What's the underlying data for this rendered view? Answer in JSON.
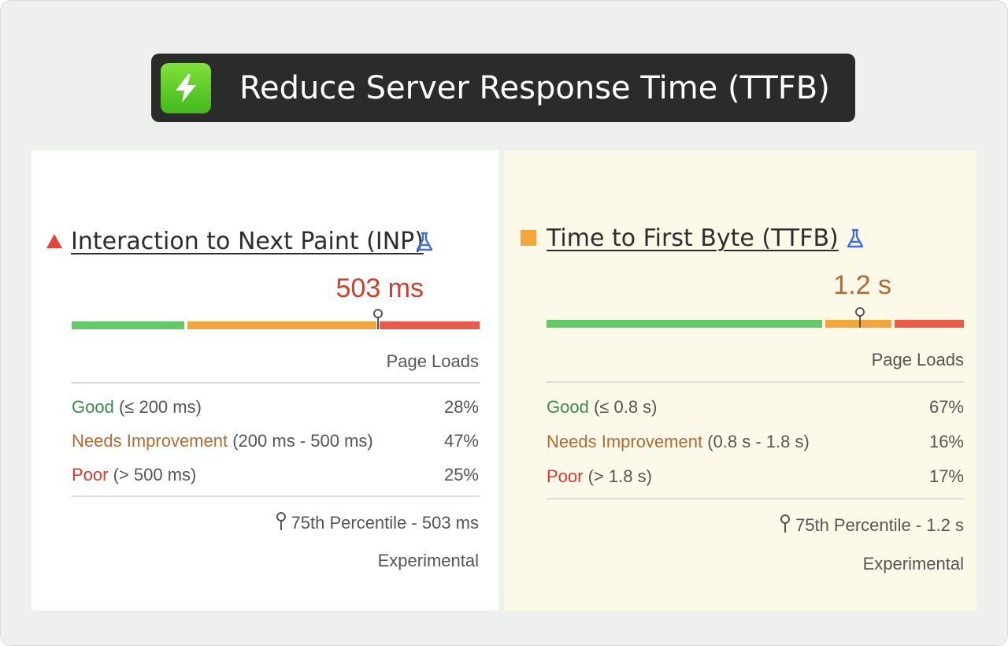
{
  "banner": {
    "icon": "lightning-bolt-icon",
    "title": "Reduce Server Response Time (TTFB)",
    "icon_color": "#5bcc26"
  },
  "inp": {
    "status_icon": "red-triangle-icon",
    "title": "Interaction to Next Paint (INP)",
    "flask_icon": "flask-icon",
    "value": "503 ms",
    "value_color": "#d43b2f",
    "distribution_shares": {
      "good": 0.28,
      "needs_improvement": 0.47,
      "poor": 0.25
    },
    "marker_fraction": 0.75,
    "column_header": "Page Loads",
    "rows": [
      {
        "label": "Good",
        "range": "(≤ 200 ms)",
        "value": "28%"
      },
      {
        "label": "Needs Improvement",
        "range": "(200 ms - 500 ms)",
        "value": "47%"
      },
      {
        "label": "Poor",
        "range": "(> 500 ms)",
        "value": "25%"
      }
    ],
    "percentile": "75th Percentile - 503 ms",
    "experimental": "Experimental"
  },
  "ttfb": {
    "status_icon": "orange-square-icon",
    "title": "Time to First Byte (TTFB)",
    "flask_icon": "flask-icon",
    "value": "1.2 s",
    "value_color": "#b26c33",
    "distribution_shares": {
      "good": 0.67,
      "needs_improvement": 0.16,
      "poor": 0.17
    },
    "marker_fraction": 0.75,
    "column_header": "Page Loads",
    "rows": [
      {
        "label": "Good",
        "range": "(≤ 0.8 s)",
        "value": "67%"
      },
      {
        "label": "Needs Improvement",
        "range": "(0.8 s - 1.8 s)",
        "value": "16%"
      },
      {
        "label": "Poor",
        "range": "(> 1.8 s)",
        "value": "17%"
      }
    ],
    "percentile": "75th Percentile - 1.2 s",
    "experimental": "Experimental"
  },
  "colors": {
    "good": "#63c967",
    "needs_improvement": "#f2a63b",
    "poor": "#ec5b4a"
  }
}
